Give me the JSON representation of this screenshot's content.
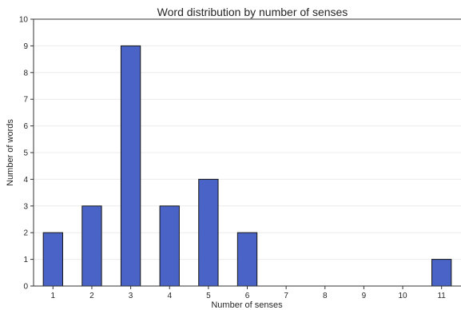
{
  "chart_data": {
    "type": "bar",
    "title": "Word distribution by number of senses",
    "xlabel": "Number of senses",
    "ylabel": "Number of words",
    "categories": [
      1,
      2,
      3,
      4,
      5,
      6,
      11
    ],
    "values": [
      2,
      3,
      9,
      3,
      4,
      2,
      1
    ],
    "xticks": [
      1,
      2,
      3,
      4,
      5,
      6,
      7,
      8,
      9,
      10,
      11
    ],
    "yticks": [
      0,
      1,
      2,
      3,
      4,
      5,
      6,
      7,
      8,
      9,
      10
    ],
    "xlim": [
      0.5,
      11.5
    ],
    "ylim": [
      0,
      10
    ],
    "grid": "horizontal",
    "colors": {
      "bar_fill": "#4a63c7",
      "bar_edge": "#151515",
      "grid": "#ececec",
      "axis": "#333333",
      "text": "#262626"
    }
  }
}
